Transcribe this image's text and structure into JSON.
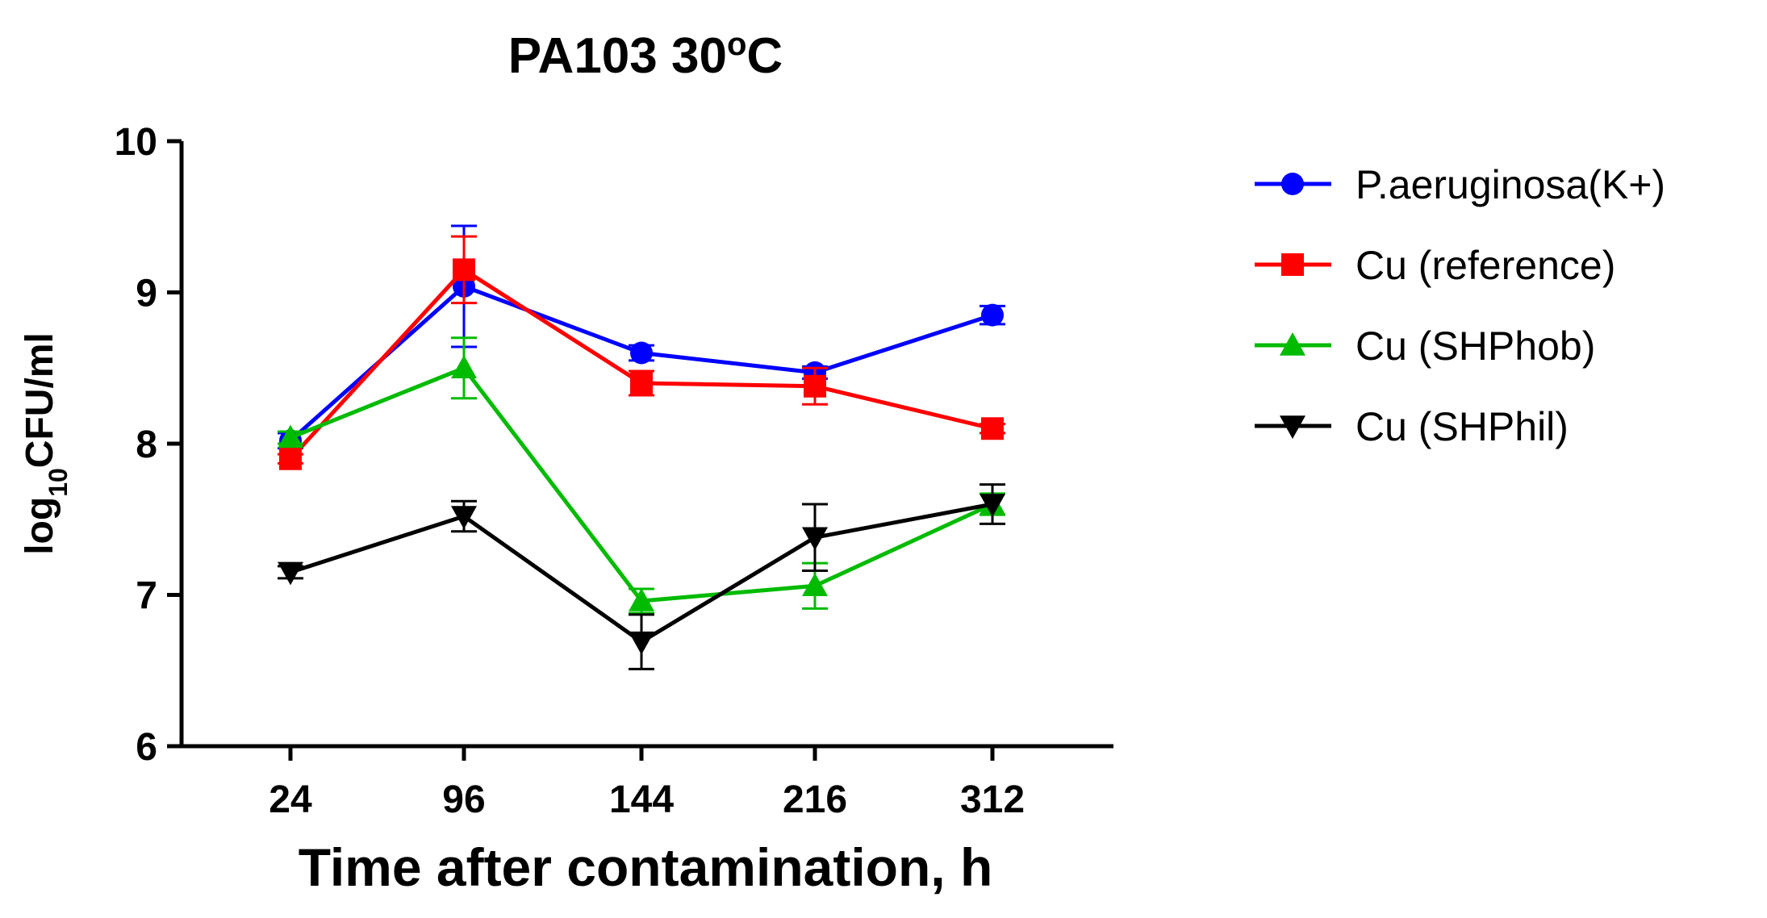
{
  "chart_data": {
    "type": "line",
    "title": "PA103 30",
    "title_superscript": "o",
    "title_suffix": "C",
    "xlabel": "Time after contamination, h",
    "ylabel": {
      "prefix": "log",
      "subscript": "10",
      "suffix": "CFU/ml"
    },
    "categories": [
      "24",
      "96",
      "144",
      "216",
      "312"
    ],
    "ylim": [
      6,
      10
    ],
    "yticks": [
      "6",
      "7",
      "8",
      "9",
      "10"
    ],
    "series": [
      {
        "name": "P.aeruginosa(K+)",
        "color": "#0000ff",
        "marker": "circle",
        "values": [
          8.02,
          9.04,
          8.6,
          8.47,
          8.85
        ],
        "errors": [
          0.05,
          0.4,
          0.05,
          0.04,
          0.06
        ]
      },
      {
        "name": "Cu (reference)",
        "color": "#ff0000",
        "marker": "square",
        "values": [
          7.9,
          9.15,
          8.4,
          8.38,
          8.1
        ],
        "errors": [
          0.03,
          0.22,
          0.08,
          0.12,
          0.03
        ]
      },
      {
        "name": "Cu (SHPhob)",
        "color": "#00bb00",
        "marker": "triangle-up",
        "values": [
          8.04,
          8.5,
          6.96,
          7.06,
          7.6
        ],
        "errors": [
          0.04,
          0.2,
          0.08,
          0.15,
          0.07
        ]
      },
      {
        "name": "Cu (SHPhil)",
        "color": "#000000",
        "marker": "triangle-down",
        "values": [
          7.15,
          7.52,
          6.69,
          7.38,
          7.6
        ],
        "errors": [
          0.04,
          0.1,
          0.18,
          0.22,
          0.13
        ]
      }
    ],
    "legend_position": "right"
  }
}
